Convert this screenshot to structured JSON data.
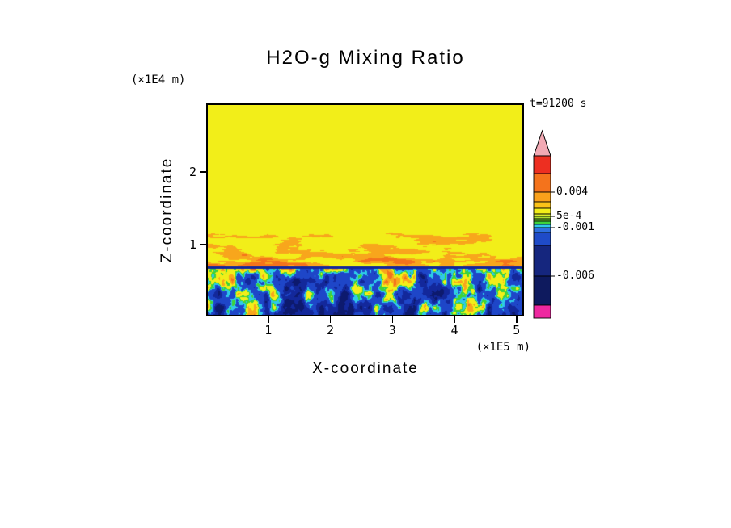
{
  "figure": {
    "title": "H2O-g Mixing Ratio",
    "time_label": "t=91200 s",
    "z_unit_label": "(×1E4 m)",
    "x_unit_label": "(×1E5 m)",
    "x_axis_title": "X-coordinate",
    "y_axis_title": "Z-coordinate",
    "background_color": "#ffffff",
    "frame_color": "#000000"
  },
  "chart_data": {
    "type": "heatmap",
    "title": "H2O-g Mixing Ratio",
    "xlabel": "X-coordinate",
    "ylabel": "Z-coordinate",
    "x_unit": "×1E5 m",
    "z_unit": "×1E4 m",
    "time": "t=91200 s",
    "x_ticks": [
      1,
      2,
      3,
      4,
      5
    ],
    "z_ticks": [
      1,
      2
    ],
    "x_range": [
      0,
      5.12
    ],
    "z_range": [
      0,
      2.95
    ],
    "grid": false,
    "legend_position": "right-colorbar",
    "colorbar": {
      "arrow_color": "#f2aab4",
      "labeled_levels": [
        0.004,
        0.0005,
        -0.001,
        -0.006
      ],
      "bands": [
        {
          "color": "#ed2f21",
          "h": 22
        },
        {
          "color": "#f4731c",
          "h": 23
        },
        {
          "color": "#f9a11b",
          "h": 12
        },
        {
          "color": "#fbc318",
          "h": 8
        },
        {
          "color": "#f2ee19",
          "h": 7
        },
        {
          "color": "#d8e92a",
          "h": 3
        },
        {
          "color": "#aadf2f",
          "h": 3
        },
        {
          "color": "#6fd62c",
          "h": 3
        },
        {
          "color": "#3ed23b",
          "h": 4
        },
        {
          "color": "#2ec9e8",
          "h": 4
        },
        {
          "color": "#2d6fe0",
          "h": 6
        },
        {
          "color": "#1f4bc8",
          "h": 16
        },
        {
          "color": "#15267e",
          "h": 38
        },
        {
          "color": "#0e1a5e",
          "h": 36
        },
        {
          "color": "#ee28a0",
          "h": 16
        }
      ],
      "labels": [
        {
          "text": "0.004",
          "boundary": 2
        },
        {
          "text": "5e-4",
          "boundary": 6
        },
        {
          "text": "-0.001",
          "boundary": 10
        },
        {
          "text": "-0.006",
          "boundary": 13
        }
      ]
    },
    "palette": {
      "yellow": "#f2ee19",
      "orange": "#f8a61c",
      "deep_orange": "#f4731c",
      "green": "#3ed23b",
      "cyan": "#2ec9e8",
      "blue": "#1e46c8",
      "navy": "#13289b",
      "dark_navy": "#0d1a6e"
    },
    "field": {
      "description": "2-D H2O-g mixing-ratio anomaly field at t=91200 s. Above z≈0.75×1E4 m the field is uniform yellow (≈5e-4 to 0.004) with horizontally elongated orange positive anomalies (≈0.004) in a band just above a sharp interface at z≈0.72×1E4 m; below the interface is a turbulent mixed layer of negative values (blue/navy, ≈-0.001 to -0.006) threaded by cyan/green/yellow/orange plumes attached to the interface.",
      "interface_frac_from_top": 0.769,
      "orange_band_top_frac": 0.607
    }
  }
}
